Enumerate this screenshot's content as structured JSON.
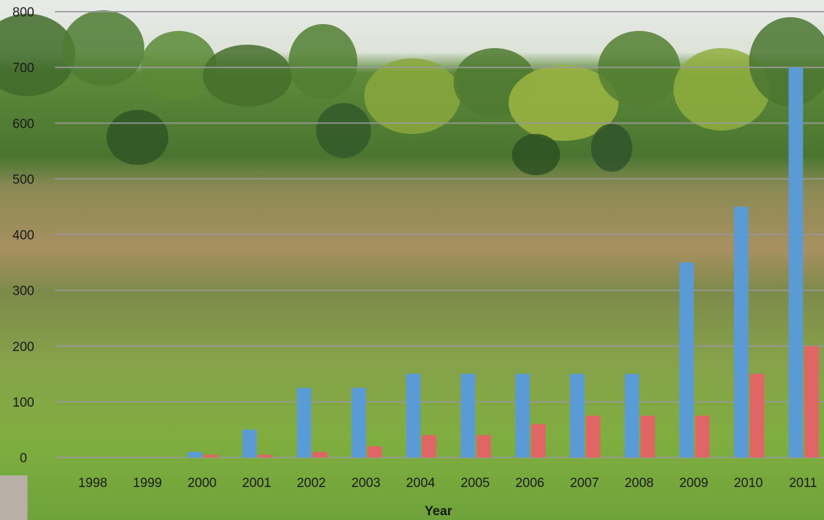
{
  "chart_data": {
    "type": "bar",
    "xlabel": "Year",
    "ylabel": "",
    "title": "",
    "ylim": [
      0,
      800
    ],
    "yticks": [
      0,
      100,
      200,
      300,
      400,
      500,
      600,
      700,
      800
    ],
    "grid": true,
    "legend": "none",
    "categories": [
      "1998",
      "1999",
      "2000",
      "2001",
      "2002",
      "2003",
      "2004",
      "2005",
      "2006",
      "2007",
      "2008",
      "2009",
      "2010",
      "2011"
    ],
    "series": [
      {
        "color": "#5b9bd5",
        "values": [
          0,
          0,
          10,
          50,
          125,
          125,
          150,
          150,
          150,
          150,
          150,
          350,
          450,
          700
        ]
      },
      {
        "color": "#e06666",
        "values": [
          0,
          0,
          5,
          5,
          10,
          20,
          40,
          40,
          60,
          75,
          75,
          75,
          150,
          200
        ]
      }
    ]
  },
  "colors": {
    "sky": "#e6e8e6",
    "treeline": "#4d7a33",
    "grass_tall": "#a08a5c",
    "meadow": "#7bab3f",
    "grid": "#9a9a9a"
  }
}
